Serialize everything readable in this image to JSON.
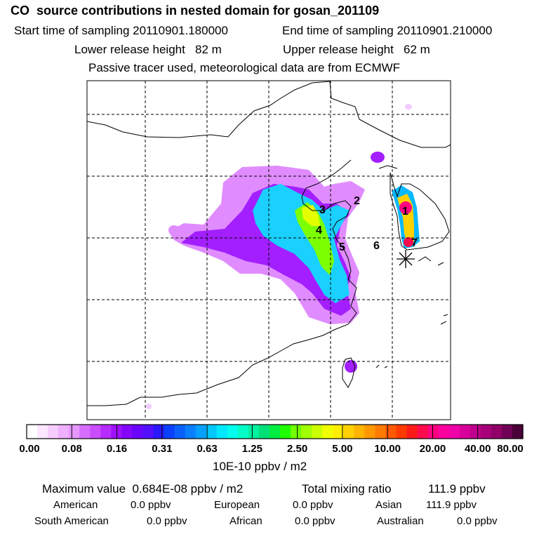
{
  "header": {
    "title": "CO  source contributions in nested domain for gosan_201109",
    "start_label": "Start time of sampling 20110901.180000",
    "end_label": "End time of sampling 20110901.210000",
    "lower_label": "Lower release height   82 m",
    "upper_label": "Upper release height   62 m",
    "note": "Passive tracer used, meteorological data are from ECMWF"
  },
  "map": {
    "region_labels": [
      "1",
      "2",
      "3",
      "4",
      "5",
      "6",
      "7"
    ],
    "receptor_icon": "asterisk-icon"
  },
  "colorbar": {
    "ticks": [
      "0.00",
      "0.08",
      "0.16",
      "0.31",
      "0.63",
      "1.25",
      "2.50",
      "5.00",
      "10.00",
      "20.00",
      "40.00",
      "80.00"
    ],
    "unit": "10E-10 ppbv / m2",
    "colors": [
      "#ffffff",
      "#fbe7ff",
      "#f6ccff",
      "#eeb0ff",
      "#e596ff",
      "#d76dff",
      "#c94dff",
      "#b62cff",
      "#9e10ff",
      "#8406ff",
      "#6a06ff",
      "#5210ff",
      "#2c18ff",
      "#0a40ff",
      "#0a60ff",
      "#0a80ff",
      "#08a0ff",
      "#00c8ff",
      "#00e8ff",
      "#00ffee",
      "#00ffc8",
      "#00f0a0",
      "#00e078",
      "#00ee40",
      "#20ff00",
      "#70ff00",
      "#a0ff00",
      "#ccff00",
      "#f0ff00",
      "#ffee00",
      "#ffd000",
      "#ffb400",
      "#ff9800",
      "#ff7a00",
      "#ff5a00",
      "#ff3a00",
      "#ff1a1a",
      "#ff0a4c",
      "#ff0080",
      "#ff00a0",
      "#f000a8",
      "#d8009a",
      "#c0008c",
      "#a8007a",
      "#900068",
      "#700055",
      "#4a0038"
    ]
  },
  "footer": {
    "max_label": "Maximum value  0.684E-08 ppbv / m2",
    "total_label": "Total mixing ratio",
    "total_value": "111.9 ppbv",
    "american_label": "American",
    "american_value": "0.0 ppbv",
    "european_label": "European",
    "european_value": "0.0 ppbv",
    "asian_label": "Asian",
    "asian_value": "111.9 ppbv",
    "south_american_label": "South American",
    "south_american_value": "0.0 ppbv",
    "african_label": "African",
    "african_value": "0.0 ppbv",
    "australian_label": "Australian",
    "australian_value": "0.0 ppbv"
  }
}
